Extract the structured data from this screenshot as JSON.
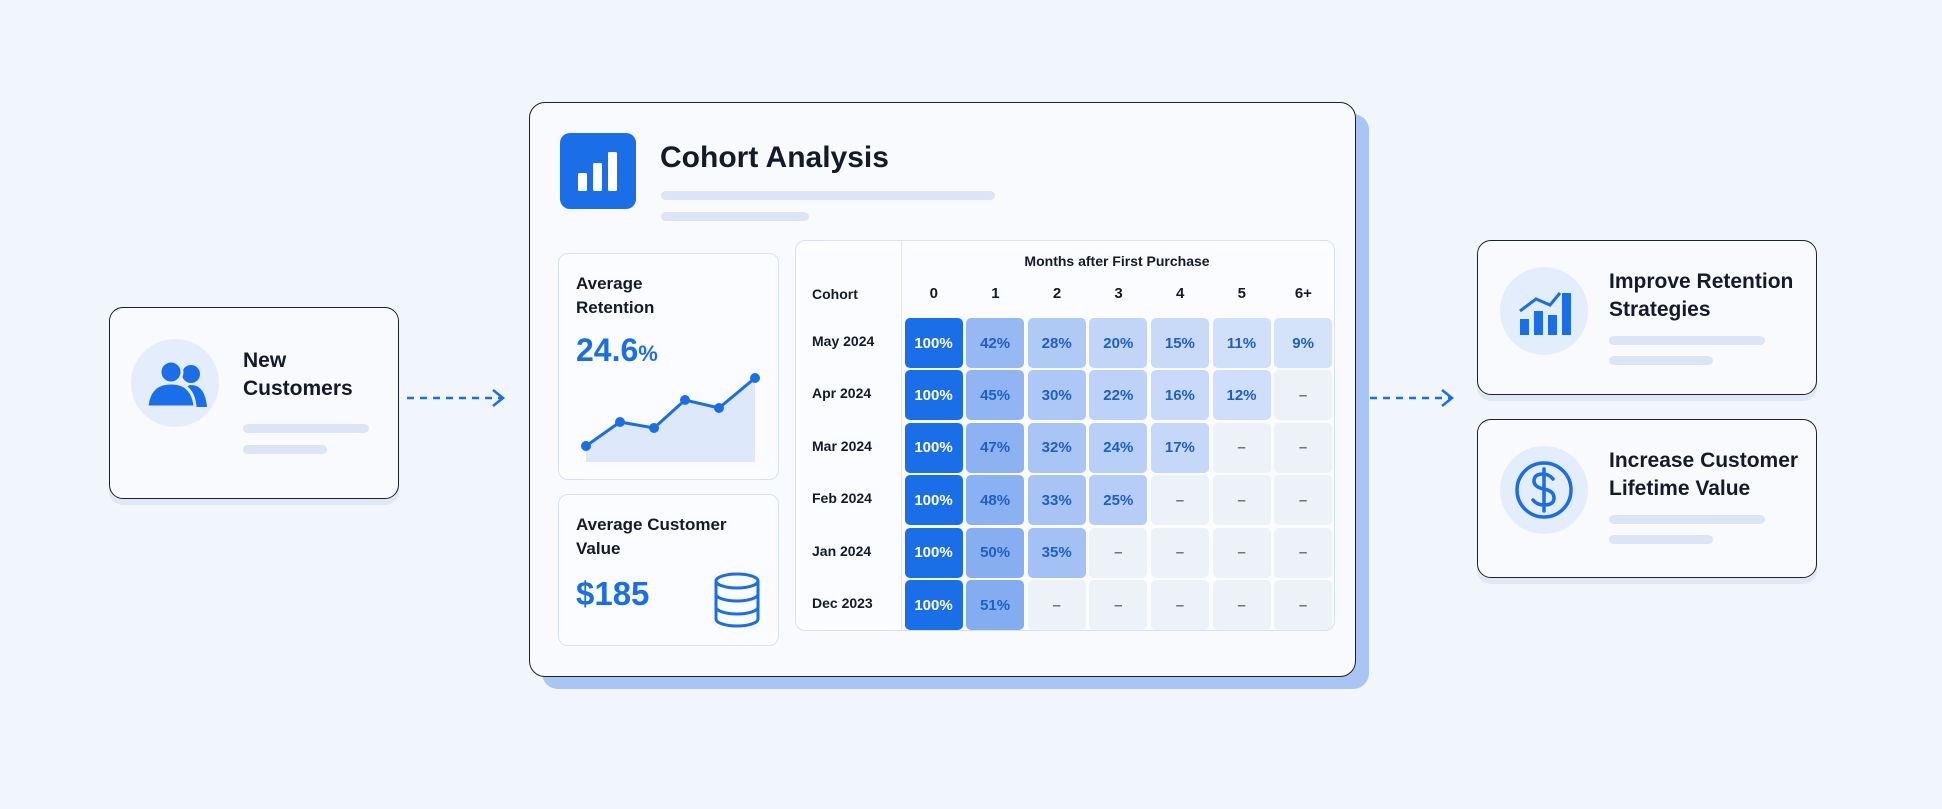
{
  "source": {
    "title": "New Customers"
  },
  "panel": {
    "title": "Cohort Analysis",
    "retention": {
      "label": "Average Retention",
      "value": "24.6",
      "unit": "%"
    },
    "customer_value": {
      "label": "Average Customer Value",
      "value": "$185"
    }
  },
  "table": {
    "header": "Months after First Purchase",
    "row_header": "Cohort",
    "columns": [
      "0",
      "1",
      "2",
      "3",
      "4",
      "5",
      "6+"
    ],
    "rows": [
      {
        "cohort": "May 2024",
        "cells": [
          "100%",
          "42%",
          "28%",
          "20%",
          "15%",
          "11%",
          "9%"
        ]
      },
      {
        "cohort": "Apr 2024",
        "cells": [
          "100%",
          "45%",
          "30%",
          "22%",
          "16%",
          "12%",
          "–"
        ]
      },
      {
        "cohort": "Mar 2024",
        "cells": [
          "100%",
          "47%",
          "32%",
          "24%",
          "17%",
          "–",
          "–"
        ]
      },
      {
        "cohort": "Feb 2024",
        "cells": [
          "100%",
          "48%",
          "33%",
          "25%",
          "–",
          "–",
          "–"
        ]
      },
      {
        "cohort": "Jan 2024",
        "cells": [
          "100%",
          "50%",
          "35%",
          "–",
          "–",
          "–",
          "–"
        ]
      },
      {
        "cohort": "Dec 2023",
        "cells": [
          "100%",
          "51%",
          "–",
          "–",
          "–",
          "–",
          "–"
        ]
      }
    ]
  },
  "outcomes": [
    {
      "title": "Improve Retention Strategies"
    },
    {
      "title": "Increase Customer Lifetime Value"
    }
  ]
}
